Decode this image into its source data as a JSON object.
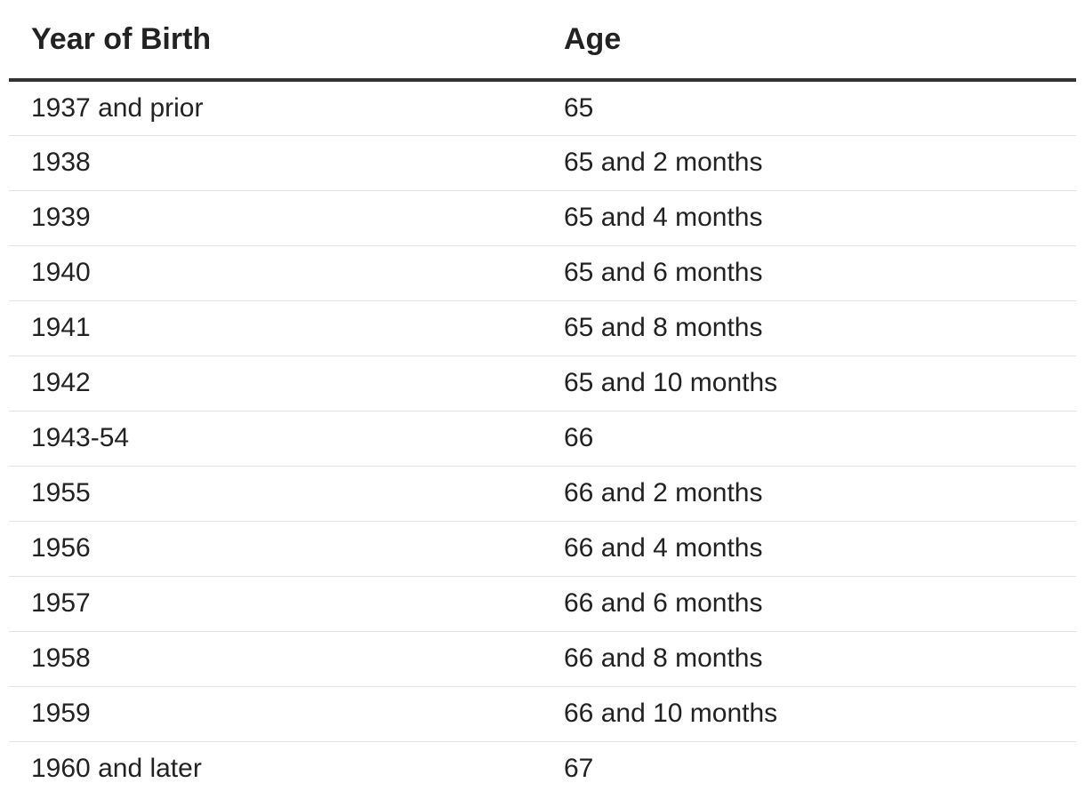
{
  "table": {
    "headers": {
      "year": "Year of Birth",
      "age": "Age"
    },
    "rows": [
      {
        "year": "1937 and prior",
        "age": "65"
      },
      {
        "year": "1938",
        "age": "65 and 2 months"
      },
      {
        "year": "1939",
        "age": "65 and 4 months"
      },
      {
        "year": "1940",
        "age": "65 and 6 months"
      },
      {
        "year": "1941",
        "age": "65 and 8 months"
      },
      {
        "year": "1942",
        "age": "65 and 10 months"
      },
      {
        "year": "1943-54",
        "age": "66"
      },
      {
        "year": "1955",
        "age": "66 and 2 months"
      },
      {
        "year": "1956",
        "age": "66 and 4 months"
      },
      {
        "year": "1957",
        "age": "66 and 6 months"
      },
      {
        "year": "1958",
        "age": "66 and 8 months"
      },
      {
        "year": "1959",
        "age": "66 and 10 months"
      },
      {
        "year": "1960 and later",
        "age": "67"
      }
    ]
  }
}
